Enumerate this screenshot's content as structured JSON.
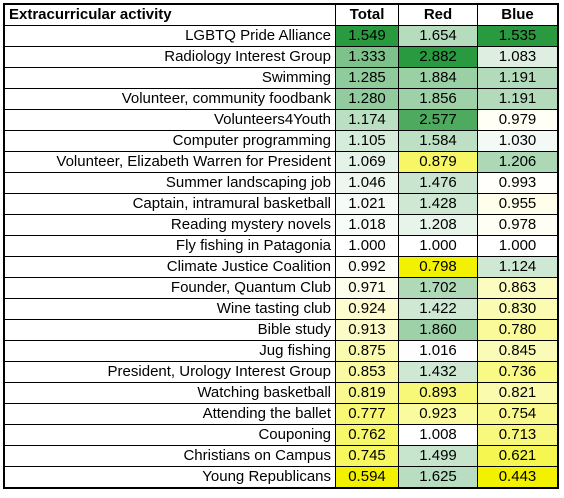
{
  "table": {
    "header": [
      "Extracurricular activity",
      "Total",
      "Red",
      "Blue"
    ],
    "rows": [
      [
        "LGBTQ Pride Alliance",
        "1.549",
        "1.654",
        "1.535"
      ],
      [
        "Radiology Interest Group",
        "1.333",
        "2.882",
        "1.083"
      ],
      [
        "Swimming",
        "1.285",
        "1.884",
        "1.191"
      ],
      [
        "Volunteer, community foodbank",
        "1.280",
        "1.856",
        "1.191"
      ],
      [
        "Volunteers4Youth",
        "1.174",
        "2.577",
        "0.979"
      ],
      [
        "Computer programming",
        "1.105",
        "1.584",
        "1.030"
      ],
      [
        "Volunteer, Elizabeth Warren for President",
        "1.069",
        "0.879",
        "1.206"
      ],
      [
        "Summer landscaping job",
        "1.046",
        "1.476",
        "0.993"
      ],
      [
        "Captain, intramural basketball",
        "1.021",
        "1.428",
        "0.955"
      ],
      [
        "Reading mystery novels",
        "1.018",
        "1.208",
        "0.978"
      ],
      [
        "Fly fishing in Patagonia",
        "1.000",
        "1.000",
        "1.000"
      ],
      [
        "Climate Justice Coalition",
        "0.992",
        "0.798",
        "1.124"
      ],
      [
        "Founder, Quantum Club",
        "0.971",
        "1.702",
        "0.863"
      ],
      [
        "Wine tasting club",
        "0.924",
        "1.422",
        "0.830"
      ],
      [
        "Bible study",
        "0.913",
        "1.860",
        "0.780"
      ],
      [
        "Jug fishing",
        "0.875",
        "1.016",
        "0.845"
      ],
      [
        "President, Urology Interest Group",
        "0.853",
        "1.432",
        "0.736"
      ],
      [
        "Watching basketball",
        "0.819",
        "0.893",
        "0.821"
      ],
      [
        "Attending the ballet",
        "0.777",
        "0.923",
        "0.754"
      ],
      [
        "Couponing",
        "0.762",
        "1.008",
        "0.713"
      ],
      [
        "Christians on Campus",
        "0.745",
        "1.499",
        "0.621"
      ],
      [
        "Young Republicans",
        "0.594",
        "1.625",
        "0.443"
      ]
    ],
    "color_scale": {
      "low": "#f2f200",
      "mid": "#ffffff",
      "high": "#2a9a40",
      "midpoint": 1
    }
  }
}
